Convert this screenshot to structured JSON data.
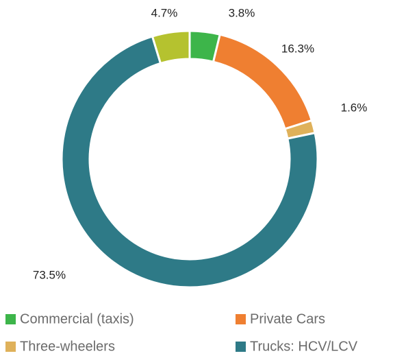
{
  "chart_data": {
    "type": "donut",
    "categories": [
      "Commercial (taxis)",
      "Private Cars",
      "Three-wheelers",
      "Trucks: HCV/LCV",
      null
    ],
    "values": [
      3.8,
      16.3,
      1.6,
      73.5,
      4.7
    ],
    "value_labels": [
      "3.8%",
      "16.3%",
      "1.6%",
      "73.5%",
      "4.7%"
    ],
    "colors": [
      "#3db54a",
      "#ef7f31",
      "#dfb15a",
      "#2e7a87",
      "#b5c22f"
    ],
    "legend": "bottom"
  }
}
